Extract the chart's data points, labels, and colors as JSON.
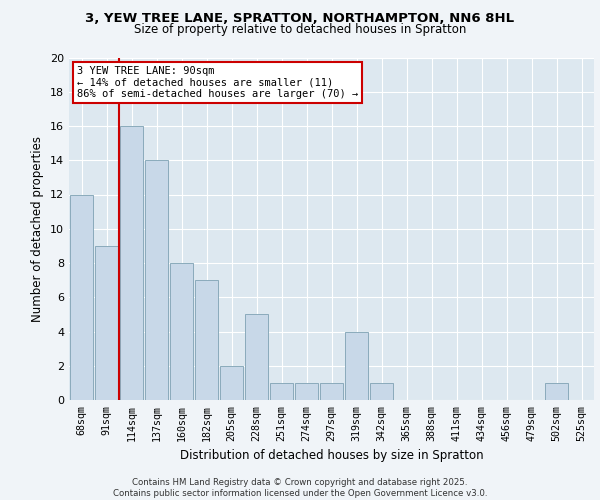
{
  "title": "3, YEW TREE LANE, SPRATTON, NORTHAMPTON, NN6 8HL",
  "subtitle": "Size of property relative to detached houses in Spratton",
  "xlabel": "Distribution of detached houses by size in Spratton",
  "ylabel": "Number of detached properties",
  "categories": [
    "68sqm",
    "91sqm",
    "114sqm",
    "137sqm",
    "160sqm",
    "182sqm",
    "205sqm",
    "228sqm",
    "251sqm",
    "274sqm",
    "297sqm",
    "319sqm",
    "342sqm",
    "365sqm",
    "388sqm",
    "411sqm",
    "434sqm",
    "456sqm",
    "479sqm",
    "502sqm",
    "525sqm"
  ],
  "values": [
    12,
    9,
    16,
    14,
    8,
    7,
    2,
    5,
    1,
    1,
    1,
    4,
    1,
    0,
    0,
    0,
    0,
    0,
    0,
    1,
    0
  ],
  "bar_color": "#c8d8e8",
  "bar_edge_color": "#8aaabb",
  "vline_x_index": 1.5,
  "vline_color": "#cc0000",
  "annotation_text": "3 YEW TREE LANE: 90sqm\n← 14% of detached houses are smaller (11)\n86% of semi-detached houses are larger (70) →",
  "annotation_box_color": "#ffffff",
  "annotation_box_edge": "#cc0000",
  "ylim": [
    0,
    20
  ],
  "yticks": [
    0,
    2,
    4,
    6,
    8,
    10,
    12,
    14,
    16,
    18,
    20
  ],
  "bg_color": "#dde8f0",
  "fig_bg_color": "#f0f4f8",
  "footer_line1": "Contains HM Land Registry data © Crown copyright and database right 2025.",
  "footer_line2": "Contains public sector information licensed under the Open Government Licence v3.0."
}
